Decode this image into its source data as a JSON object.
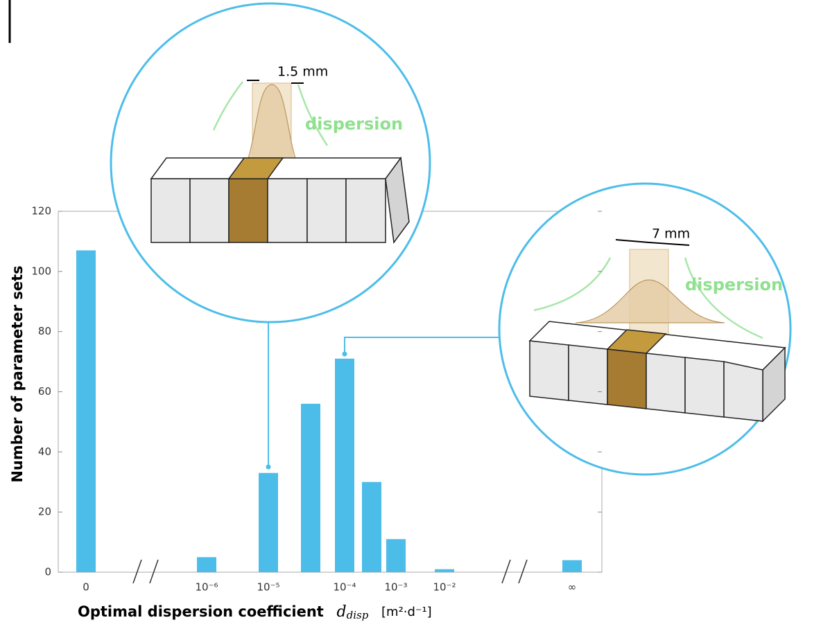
{
  "chart_data": {
    "type": "bar",
    "ylabel": "Number of parameter sets",
    "xlabel": "Optimal dispersion coefficient",
    "xlabel_symbol": "d",
    "xlabel_subscript": "disp",
    "xlabel_unit": "[m²·d⁻¹]",
    "categories": [
      "0",
      "10⁻⁶",
      "10⁻⁵",
      null,
      "10⁻⁴",
      null,
      "10⁻³",
      "10⁻²",
      "∞"
    ],
    "values": [
      107,
      5,
      33,
      56,
      71,
      30,
      11,
      1,
      4
    ],
    "color": "#4cbde9",
    "ylim": [
      0,
      120
    ],
    "yticks": [
      0,
      20,
      40,
      60,
      80,
      100,
      120
    ],
    "annotations": [
      {
        "width": "1.5 mm",
        "label": "dispersion"
      },
      {
        "width": "7 mm",
        "label": "dispersion"
      }
    ]
  }
}
